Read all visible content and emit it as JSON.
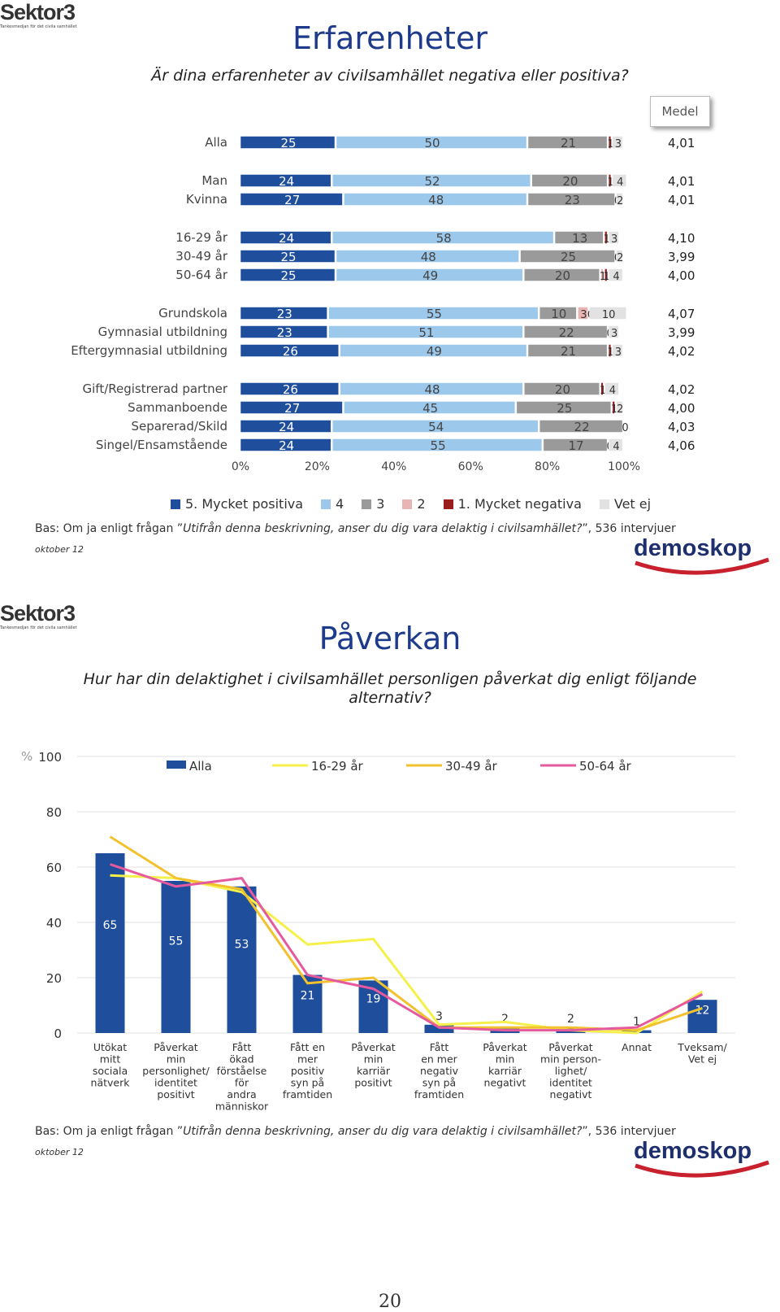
{
  "logo": {
    "name": "Sektor3",
    "tagline": "Tankesmedjan för det civila samhället"
  },
  "page1": {
    "title": "Erfarenheter",
    "question": "Är dina erfarenheter av civilsamhället negativa eller positiva?",
    "medel_label": "Medel",
    "bas_prefix": "Bas: Om ja enligt frågan ”",
    "bas_italic": "Utifrån denna beskrivning, anser du dig vara delaktig i civilsamhället?",
    "bas_suffix": "”, 536 intervjuer",
    "date": "oktober 12",
    "brand": "demoskop"
  },
  "chart_data": [
    {
      "type": "bar",
      "orientation": "horizontal-stacked-100",
      "series": [
        {
          "name": "5. Mycket positiva",
          "color": "#1f4e9c"
        },
        {
          "name": "4",
          "color": "#9cc8ec"
        },
        {
          "name": "3",
          "color": "#9a9a9a"
        },
        {
          "name": "2",
          "color": "#e8b4b4"
        },
        {
          "name": "1. Mycket negativa",
          "color": "#9b1c1c"
        },
        {
          "name": "Vet ej",
          "color": "#e2e2e2"
        }
      ],
      "x_ticks": [
        "0%",
        "20%",
        "40%",
        "60%",
        "80%",
        "100%"
      ],
      "rows": [
        {
          "label": "Alla",
          "values": [
            25,
            50,
            21,
            0,
            1,
            3
          ],
          "labels": [
            "25",
            "50",
            "21",
            "",
            "1",
            "3"
          ],
          "medel": "4,01"
        },
        {
          "label": "Man",
          "values": [
            24,
            52,
            20,
            0,
            1,
            4
          ],
          "labels": [
            "24",
            "52",
            "20",
            "",
            "1",
            "4"
          ],
          "medel": "4,01"
        },
        {
          "label": "Kvinna",
          "values": [
            27,
            48,
            23,
            0,
            0,
            2
          ],
          "labels": [
            "27",
            "48",
            "23",
            "",
            "0",
            "2"
          ],
          "medel": "4,01"
        },
        {
          "label": "16-29 år",
          "values": [
            24,
            58,
            13,
            0,
            1,
            3
          ],
          "labels": [
            "24",
            "58",
            "13",
            "",
            "1",
            "3"
          ],
          "medel": "4,10"
        },
        {
          "label": "30-49 år",
          "values": [
            25,
            48,
            25,
            0,
            0,
            2
          ],
          "labels": [
            "25",
            "48",
            "25",
            "",
            "0",
            "2"
          ],
          "medel": "3,99"
        },
        {
          "label": "50-64 år",
          "values": [
            25,
            49,
            20,
            1,
            1,
            4
          ],
          "labels": [
            "25",
            "49",
            "20",
            "1",
            "1",
            "4"
          ],
          "medel": "4,00"
        },
        {
          "label": "Grundskola",
          "values": [
            23,
            55,
            10,
            3,
            0,
            10
          ],
          "labels": [
            "23",
            "55",
            "10",
            "3",
            "0",
            "10"
          ],
          "medel": "4,07"
        },
        {
          "label": "Gymnasial utbildning",
          "values": [
            23,
            51,
            22,
            0,
            0,
            3
          ],
          "labels": [
            "23",
            "51",
            "22",
            "",
            "0",
            "3"
          ],
          "medel": "3,99"
        },
        {
          "label": "Eftergymnasial utbildning",
          "values": [
            26,
            49,
            21,
            0,
            1,
            3
          ],
          "labels": [
            "26",
            "49",
            "21",
            "",
            "1",
            "3"
          ],
          "medel": "4,02"
        },
        {
          "label": "Gift/Registrerad partner",
          "values": [
            26,
            48,
            20,
            0,
            1,
            4
          ],
          "labels": [
            "26",
            "48",
            "20",
            "",
            "1",
            "4"
          ],
          "medel": "4,02"
        },
        {
          "label": "Sammanboende",
          "values": [
            27,
            45,
            25,
            0,
            1,
            2
          ],
          "labels": [
            "27",
            "45",
            "25",
            "",
            "1",
            "2"
          ],
          "medel": "4,00"
        },
        {
          "label": "Separerad/Skild",
          "values": [
            24,
            54,
            22,
            0,
            0,
            0
          ],
          "labels": [
            "24",
            "54",
            "22",
            "",
            "",
            "0"
          ],
          "medel": "4,03"
        },
        {
          "label": "Singel/Ensamstående",
          "values": [
            24,
            55,
            17,
            0,
            0,
            4
          ],
          "labels": [
            "24",
            "55",
            "17",
            "",
            "0",
            "4"
          ],
          "medel": "4,06"
        }
      ]
    },
    {
      "type": "bar",
      "overlay": "line",
      "title": "Påverkan",
      "ylabel": "%",
      "ylim": [
        0,
        100
      ],
      "y_ticks": [
        "0",
        "20",
        "40",
        "60",
        "80",
        "100"
      ],
      "categories": [
        "Utökat mitt sociala nätverk",
        "Påverkat min personlighet/ identitet positivt",
        "Fått ökad förståelse för andra människor",
        "Fått en mer positiv syn på framtiden",
        "Påverkat min karriär positivt",
        "Fått en mer negativ syn på framtiden",
        "Påverkat min karriär negativt",
        "Påverkat min person-lighet/ identitet negativt",
        "Annat",
        "Tveksam/ Vet ej"
      ],
      "category_lines": [
        [
          "Utökat",
          "mitt",
          "sociala",
          "nätverk"
        ],
        [
          "Påverkat",
          "min",
          "personlighet/",
          "identitet",
          "positivt"
        ],
        [
          "Fått",
          "ökad",
          "förståelse",
          "för",
          "andra",
          "människor"
        ],
        [
          "Fått en",
          "mer",
          "positiv",
          "syn på",
          "framtiden"
        ],
        [
          "Påverkat",
          "min",
          "karriär",
          "positivt"
        ],
        [
          "Fått",
          "en mer",
          "negativ",
          "syn på",
          "framtiden"
        ],
        [
          "Påverkat",
          "min",
          "karriär",
          "negativt"
        ],
        [
          "Påverkat",
          "min person-",
          "lighet/",
          "identitet",
          "negativt"
        ],
        [
          "Annat"
        ],
        [
          "Tveksam/",
          "Vet ej"
        ]
      ],
      "series": [
        {
          "name": "Alla",
          "kind": "bar",
          "color": "#1f4e9c",
          "values": [
            65,
            55,
            53,
            21,
            19,
            3,
            2,
            2,
            1,
            12
          ]
        },
        {
          "name": "16-29 år",
          "kind": "line",
          "color": "#f5f04a",
          "values": [
            57,
            56,
            51,
            32,
            34,
            3,
            4,
            1,
            0,
            15
          ]
        },
        {
          "name": "30-49 år",
          "kind": "line",
          "color": "#f2c12e",
          "values": [
            71,
            56,
            52,
            18,
            20,
            2,
            2,
            2,
            1,
            9
          ]
        },
        {
          "name": "50-64 år",
          "kind": "line",
          "color": "#e55a9e",
          "values": [
            61,
            53,
            56,
            21,
            16,
            2,
            1,
            1,
            2,
            14
          ]
        }
      ]
    }
  ],
  "page2": {
    "title": "Påverkan",
    "question_line1": "Hur har din delaktighet i civilsamhället personligen påverkat dig enligt följande",
    "question_line2": "alternativ?",
    "bas_prefix": "Bas: Om ja enligt frågan ”",
    "bas_italic": "Utifrån denna beskrivning, anser du dig vara delaktig i civilsamhället?",
    "bas_suffix": "”, 536 intervjuer",
    "date": "oktober 12",
    "brand": "demoskop"
  },
  "page_number": "20"
}
